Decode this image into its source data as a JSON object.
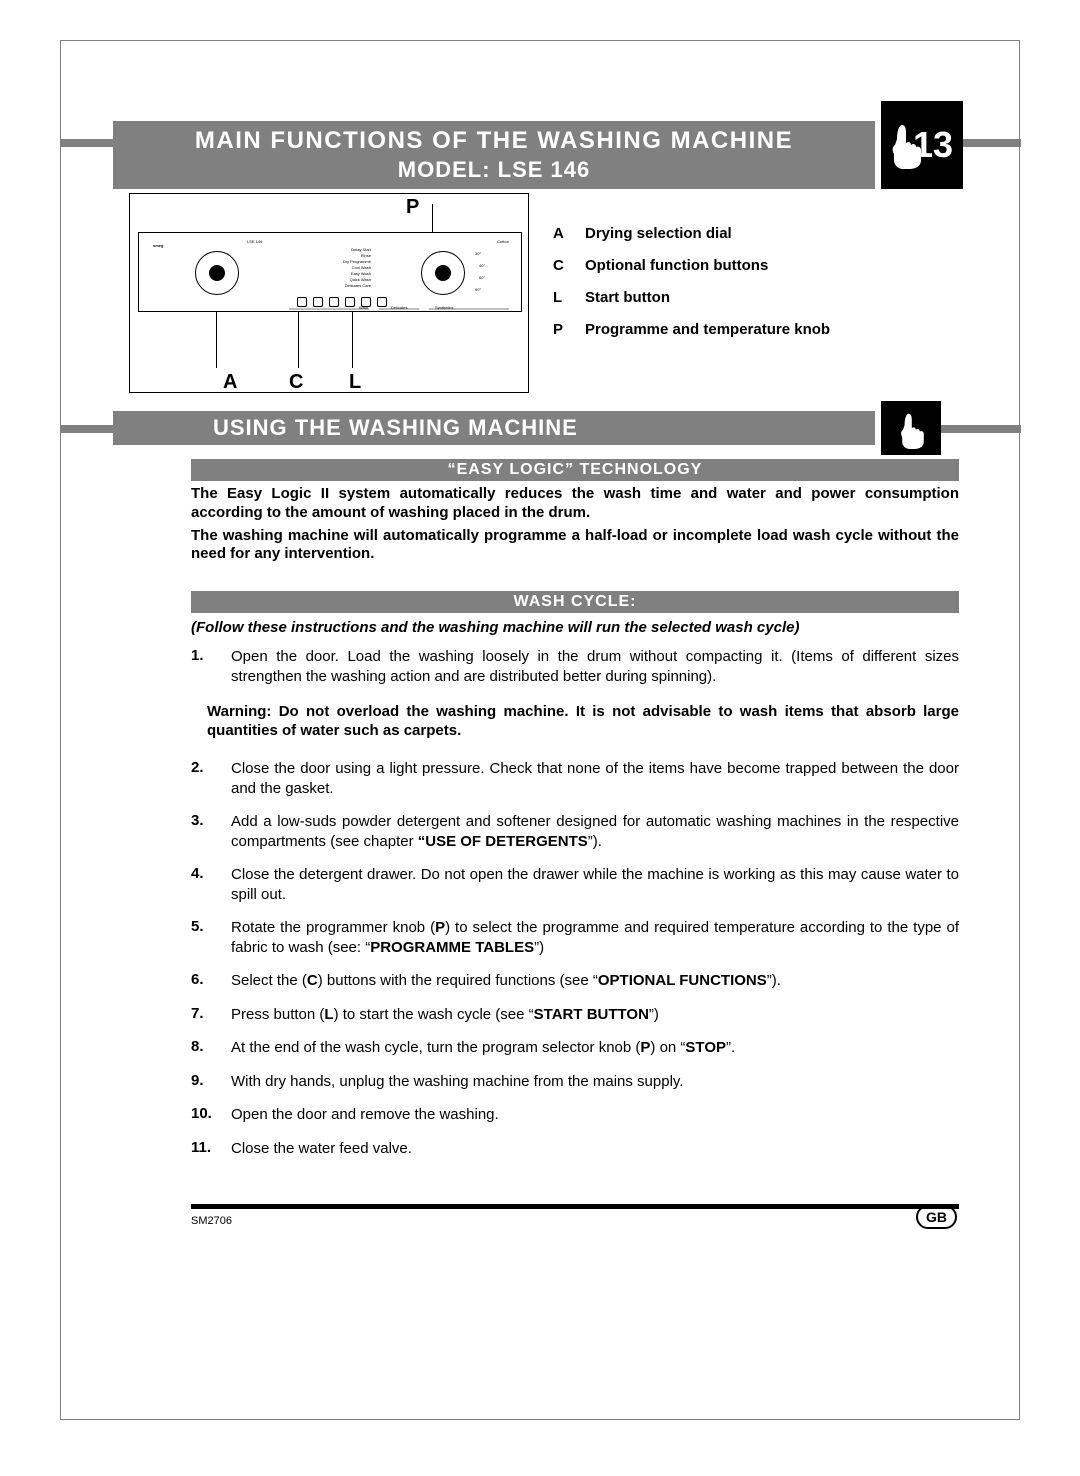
{
  "page_number": "13",
  "header": {
    "line1": "MAIN FUNCTIONS OF THE WASHING MACHINE",
    "line2": "MODEL: LSE 146"
  },
  "diagram": {
    "labels": {
      "P": "P",
      "A": "A",
      "C": "C",
      "L": "L"
    },
    "panel_brand": "smeg",
    "panel_model": "LSE 146",
    "fabric_labels": [
      "Wool",
      "Delicates",
      "Synthetics",
      "Cotton"
    ],
    "prog_labels": [
      "Delay Start",
      "Rinse",
      "Dry Programme",
      "Cool Wash",
      "Easy Wash",
      "Quick Wash",
      "Delicates Care"
    ],
    "knob_temps": [
      "30°",
      "40°",
      "60°",
      "90°"
    ]
  },
  "legend": [
    {
      "key": "A",
      "text": "Drying selection dial"
    },
    {
      "key": "C",
      "text": "Optional function buttons"
    },
    {
      "key": "L",
      "text": "Start button"
    },
    {
      "key": "P",
      "text": "Programme and temperature knob"
    }
  ],
  "section2_title": "USING THE WASHING MACHINE",
  "sub_easy_title": "“EASY LOGIC” TECHNOLOGY",
  "easy_text": {
    "p1": "The Easy Logic II system automatically reduces the wash time and water and power consumption according to the amount of washing placed in the drum.",
    "p2": "The washing machine will automatically programme a half-load or incomplete load wash cycle without the need for any intervention."
  },
  "sub_wash_title": "WASH CYCLE:",
  "follow_text": "(Follow these instructions and the washing machine will run the selected wash cycle)",
  "steps_part1": [
    {
      "n": "1.",
      "t": "Open the door. Load the washing loosely in the drum without compacting it. (Items of different sizes strengthen the washing action and are distributed better during spinning)."
    }
  ],
  "warning_text": "Warning: Do not overload the washing machine. It is not advisable to wash items that absorb large quantities of water such as carpets.",
  "steps_part2": [
    {
      "n": "2.",
      "t_html": "Close the door using a light pressure. Check that none of the items have become trapped between the door and the gasket."
    },
    {
      "n": "3.",
      "t_html": "Add a low-suds powder detergent and softener designed for automatic washing machines in the respective compartments (see chapter <b>“USE OF DETERGENTS</b>”)."
    },
    {
      "n": "4.",
      "t_html": "Close the detergent drawer. Do not open the drawer while the machine is working as this may cause water to spill out."
    },
    {
      "n": "5.",
      "t_html": "Rotate the programmer knob (<b>P</b>) to select the programme and required temperature according to the type of fabric to wash (see: “<b>PROGRAMME TABLES</b>”)"
    },
    {
      "n": "6.",
      "t_html": "Select the (<b>C</b>) buttons with the required functions (see “<b>OPTIONAL FUNCTIONS</b>”)."
    },
    {
      "n": "7.",
      "t_html": "Press button (<b>L</b>) to start the wash cycle (see “<b>START BUTTON</b>”)"
    },
    {
      "n": "8.",
      "t_html": "At the end of the wash cycle, turn the program selector knob (<b>P</b>) on “<b>STOP</b>”."
    },
    {
      "n": "9.",
      "t_html": "With dry hands, unplug the washing machine from the mains supply."
    },
    {
      "n": "10.",
      "t_html": "Open the door and remove the washing."
    },
    {
      "n": "11.",
      "t_html": "Close the water feed valve."
    }
  ],
  "footer": {
    "code": "SM2706",
    "country": "GB"
  },
  "colors": {
    "grey": "#808080",
    "black": "#000000",
    "white": "#ffffff"
  }
}
